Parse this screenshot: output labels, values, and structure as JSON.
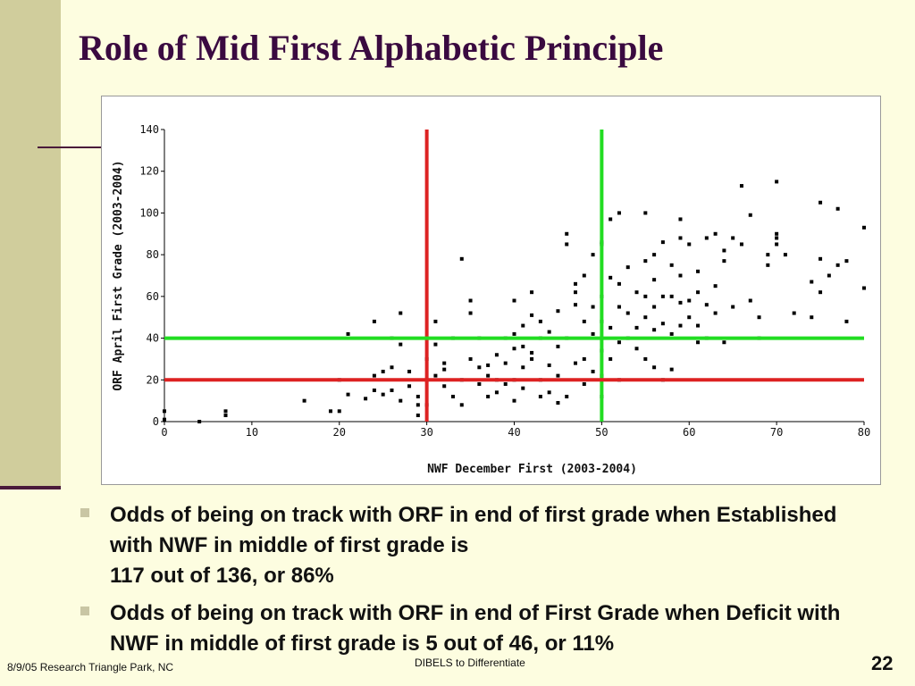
{
  "slide": {
    "title": "Role of Mid First Alphabetic Principle",
    "bullets": [
      "Odds of being on track with ORF in end of first grade when Established with NWF in middle of first grade is\n117 out of 136, or 86%",
      "Odds of being on track with ORF in end of First Grade when Deficit with NWF in middle of first grade is 5 out of 46, or 11%"
    ],
    "footer_left": "8/9/05 Research Triangle Park, NC",
    "footer_center": "DIBELS to Differentiate",
    "page_number": "22"
  },
  "chart_data": {
    "type": "scatter",
    "xlabel": "NWF December First (2003-2004)",
    "ylabel": "ORF April First Grade (2003-2004)",
    "xlim": [
      0,
      80
    ],
    "ylim": [
      0,
      140
    ],
    "x_ticks": [
      "0",
      "10",
      "20",
      "30",
      "40",
      "50",
      "60",
      "70",
      "80"
    ],
    "y_ticks": [
      "0",
      "20",
      "40",
      "60",
      "80",
      "100",
      "120",
      "140"
    ],
    "reference_lines": [
      {
        "orientation": "vertical",
        "value": 30,
        "color": "#dd2222"
      },
      {
        "orientation": "vertical",
        "value": 50,
        "color": "#22dd22"
      },
      {
        "orientation": "horizontal",
        "value": 20,
        "color": "#dd2222"
      },
      {
        "orientation": "horizontal",
        "value": 40,
        "color": "#22dd22"
      }
    ],
    "point_color": "#000000",
    "points": [
      [
        0,
        5
      ],
      [
        0,
        1
      ],
      [
        4,
        0
      ],
      [
        7,
        3
      ],
      [
        7,
        5
      ],
      [
        16,
        10
      ],
      [
        19,
        5
      ],
      [
        20,
        5
      ],
      [
        21,
        42
      ],
      [
        20,
        20
      ],
      [
        21,
        13
      ],
      [
        23,
        11
      ],
      [
        24,
        22
      ],
      [
        24,
        15
      ],
      [
        25,
        13
      ],
      [
        25,
        24
      ],
      [
        26,
        26
      ],
      [
        24,
        48
      ],
      [
        26,
        15
      ],
      [
        27,
        10
      ],
      [
        28,
        17
      ],
      [
        28,
        24
      ],
      [
        27,
        52
      ],
      [
        26,
        40
      ],
      [
        27,
        37
      ],
      [
        29,
        12
      ],
      [
        29,
        8
      ],
      [
        29,
        3
      ],
      [
        30,
        8
      ],
      [
        30,
        20
      ],
      [
        30,
        30
      ],
      [
        30,
        40
      ],
      [
        31,
        22
      ],
      [
        31,
        37
      ],
      [
        31,
        48
      ],
      [
        32,
        28
      ],
      [
        32,
        25
      ],
      [
        32,
        17
      ],
      [
        33,
        40
      ],
      [
        33,
        12
      ],
      [
        34,
        20
      ],
      [
        34,
        78
      ],
      [
        35,
        58
      ],
      [
        34,
        8
      ],
      [
        35,
        52
      ],
      [
        35,
        30
      ],
      [
        36,
        40
      ],
      [
        36,
        26
      ],
      [
        36,
        18
      ],
      [
        37,
        22
      ],
      [
        37,
        27
      ],
      [
        37,
        12
      ],
      [
        38,
        20
      ],
      [
        38,
        32
      ],
      [
        38,
        14
      ],
      [
        39,
        40
      ],
      [
        39,
        28
      ],
      [
        39,
        18
      ],
      [
        40,
        42
      ],
      [
        40,
        58
      ],
      [
        40,
        35
      ],
      [
        40,
        20
      ],
      [
        40,
        10
      ],
      [
        41,
        36
      ],
      [
        41,
        26
      ],
      [
        41,
        16
      ],
      [
        41,
        46
      ],
      [
        42,
        62
      ],
      [
        42,
        51
      ],
      [
        42,
        33
      ],
      [
        42,
        30
      ],
      [
        43,
        48
      ],
      [
        43,
        40
      ],
      [
        43,
        20
      ],
      [
        43,
        12
      ],
      [
        44,
        43
      ],
      [
        44,
        27
      ],
      [
        44,
        14
      ],
      [
        45,
        53
      ],
      [
        45,
        36
      ],
      [
        45,
        22
      ],
      [
        45,
        9
      ],
      [
        46,
        85
      ],
      [
        46,
        90
      ],
      [
        46,
        40
      ],
      [
        46,
        12
      ],
      [
        47,
        28
      ],
      [
        47,
        56
      ],
      [
        47,
        62
      ],
      [
        47,
        66
      ],
      [
        48,
        70
      ],
      [
        48,
        48
      ],
      [
        48,
        30
      ],
      [
        48,
        18
      ],
      [
        49,
        80
      ],
      [
        49,
        55
      ],
      [
        49,
        42
      ],
      [
        49,
        24
      ],
      [
        50,
        85
      ],
      [
        50,
        86
      ],
      [
        50,
        60
      ],
      [
        50,
        48
      ],
      [
        50,
        34
      ],
      [
        50,
        22
      ],
      [
        50,
        12
      ],
      [
        51,
        97
      ],
      [
        51,
        69
      ],
      [
        51,
        45
      ],
      [
        51,
        30
      ],
      [
        52,
        100
      ],
      [
        52,
        66
      ],
      [
        52,
        55
      ],
      [
        52,
        38
      ],
      [
        52,
        20
      ],
      [
        53,
        74
      ],
      [
        53,
        52
      ],
      [
        53,
        40
      ],
      [
        54,
        62
      ],
      [
        54,
        45
      ],
      [
        54,
        35
      ],
      [
        55,
        100
      ],
      [
        55,
        77
      ],
      [
        55,
        60
      ],
      [
        55,
        50
      ],
      [
        55,
        30
      ],
      [
        56,
        80
      ],
      [
        56,
        68
      ],
      [
        56,
        55
      ],
      [
        56,
        44
      ],
      [
        56,
        26
      ],
      [
        57,
        86
      ],
      [
        57,
        60
      ],
      [
        57,
        47
      ],
      [
        57,
        20
      ],
      [
        58,
        75
      ],
      [
        58,
        60
      ],
      [
        58,
        42
      ],
      [
        58,
        25
      ],
      [
        59,
        97
      ],
      [
        59,
        88
      ],
      [
        59,
        70
      ],
      [
        59,
        57
      ],
      [
        59,
        46
      ],
      [
        60,
        85
      ],
      [
        60,
        58
      ],
      [
        60,
        50
      ],
      [
        61,
        72
      ],
      [
        61,
        62
      ],
      [
        61,
        46
      ],
      [
        61,
        38
      ],
      [
        62,
        88
      ],
      [
        62,
        56
      ],
      [
        62,
        40
      ],
      [
        63,
        90
      ],
      [
        63,
        65
      ],
      [
        63,
        52
      ],
      [
        64,
        82
      ],
      [
        64,
        77
      ],
      [
        64,
        38
      ],
      [
        65,
        88
      ],
      [
        66,
        113
      ],
      [
        65,
        55
      ],
      [
        66,
        85
      ],
      [
        67,
        99
      ],
      [
        67,
        58
      ],
      [
        68,
        50
      ],
      [
        68,
        40
      ],
      [
        69,
        75
      ],
      [
        69,
        80
      ],
      [
        70,
        85
      ],
      [
        70,
        115
      ],
      [
        70,
        88
      ],
      [
        70,
        90
      ],
      [
        71,
        80
      ],
      [
        72,
        52
      ],
      [
        74,
        50
      ],
      [
        74,
        67
      ],
      [
        75,
        105
      ],
      [
        75,
        78
      ],
      [
        75,
        62
      ],
      [
        76,
        70
      ],
      [
        77,
        102
      ],
      [
        77,
        75
      ],
      [
        78,
        77
      ],
      [
        78,
        48
      ],
      [
        80,
        93
      ],
      [
        80,
        64
      ]
    ]
  }
}
